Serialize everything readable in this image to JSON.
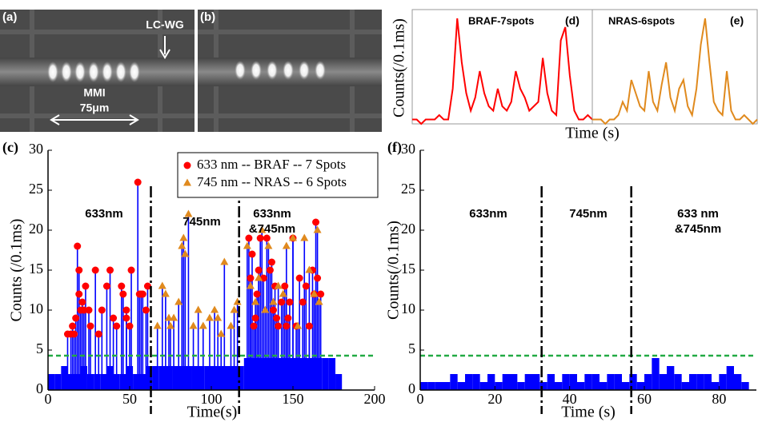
{
  "images": {
    "a": {
      "label": "(a)",
      "annotations": [
        "LC-WG",
        "MMI",
        "75μm"
      ]
    },
    "b": {
      "label": "(b)"
    }
  },
  "chart_data": [
    {
      "type": "line",
      "panel_label": "(d)",
      "title": "BRAF-7spots",
      "xlabel": "Time (s)",
      "ylabel": "Counts(/0.1ms)",
      "color": "#ff0000",
      "xlim": [
        0,
        40
      ],
      "ylim": [
        0,
        26
      ],
      "x": [
        0,
        1,
        2,
        3,
        4,
        5,
        6,
        7,
        8,
        9,
        10,
        11,
        12,
        13,
        14,
        15,
        16,
        17,
        18,
        19,
        20,
        21,
        22,
        23,
        24,
        25,
        26,
        27,
        28,
        29,
        30,
        31,
        32,
        33,
        34,
        35,
        36,
        37,
        38,
        39,
        40
      ],
      "values": [
        1,
        1,
        0,
        1,
        1,
        1,
        2,
        1,
        1,
        8,
        24,
        14,
        7,
        3,
        6,
        12,
        7,
        4,
        3,
        8,
        4,
        3,
        5,
        12,
        8,
        6,
        3,
        4,
        5,
        15,
        7,
        3,
        2,
        19,
        22,
        11,
        3,
        1,
        1,
        2,
        1
      ]
    },
    {
      "type": "line",
      "panel_label": "(e)",
      "title": "NRAS-6spots",
      "color": "#e08a1e",
      "xlim": [
        0,
        38
      ],
      "ylim": [
        0,
        26
      ],
      "x": [
        0,
        1,
        2,
        3,
        4,
        5,
        6,
        7,
        8,
        9,
        10,
        11,
        12,
        13,
        14,
        15,
        16,
        17,
        18,
        19,
        20,
        21,
        22,
        23,
        24,
        25,
        26,
        27,
        28,
        29,
        30,
        31,
        32,
        33,
        34,
        35,
        36,
        37,
        38
      ],
      "values": [
        1,
        1,
        1,
        0,
        1,
        1,
        2,
        5,
        3,
        10,
        7,
        4,
        3,
        12,
        5,
        3,
        9,
        14,
        6,
        3,
        8,
        10,
        4,
        2,
        8,
        18,
        24,
        14,
        5,
        3,
        2,
        12,
        3,
        1,
        1,
        2,
        1,
        0,
        1
      ]
    },
    {
      "type": "stem",
      "panel_label": "(c)",
      "xlabel": "Time(s)",
      "ylabel": "Counts (/0.1ms)",
      "xlim": [
        0,
        200
      ],
      "ylim": [
        0,
        30
      ],
      "xticks": [
        0,
        50,
        100,
        150,
        200
      ],
      "yticks": [
        0,
        5,
        10,
        15,
        20,
        25,
        30
      ],
      "stem_color": "#0000ff",
      "hlines": [
        {
          "value": 4.3,
          "color": "#22aa44"
        }
      ],
      "vlines": [
        {
          "value": 63
        },
        {
          "value": 117
        }
      ],
      "annotations": [
        [
          "633nm"
        ],
        [
          "745nm"
        ],
        [
          "633nm",
          "&745nm"
        ]
      ],
      "series": [
        {
          "style": "bar",
          "color": "#0000ff",
          "x": [
            0,
            4,
            8,
            12,
            16,
            20,
            24,
            28,
            32,
            36,
            40,
            44,
            48,
            52,
            56,
            60,
            64,
            68,
            72,
            76,
            80,
            84,
            88,
            92,
            96,
            100,
            104,
            108,
            112,
            116,
            120,
            124,
            128,
            132,
            136,
            140,
            144,
            148,
            152,
            156,
            160,
            164,
            168,
            172,
            176
          ],
          "values": [
            2,
            2,
            3,
            2,
            2,
            3,
            2,
            2,
            2,
            3,
            2,
            2,
            3,
            2,
            2,
            3,
            3,
            3,
            3,
            3,
            3,
            3,
            3,
            3,
            3,
            3,
            3,
            3,
            3,
            3,
            4,
            4,
            4,
            4,
            4,
            4,
            4,
            4,
            4,
            4,
            4,
            4,
            4,
            4,
            2
          ]
        },
        {
          "name": "633 nm -- BRAF -- 7 Spots",
          "marker": "circle",
          "color": "#ff0000",
          "x": [
            12,
            14,
            15,
            16,
            17,
            18,
            19,
            19,
            20,
            21,
            22,
            23,
            25,
            26,
            29,
            31,
            33,
            36,
            38,
            40,
            42,
            45,
            46,
            48,
            48,
            50,
            51,
            55,
            56,
            57,
            58,
            60,
            61,
            123,
            124,
            125,
            126,
            127,
            128,
            129,
            130,
            132,
            134,
            136,
            137,
            138,
            139,
            140,
            141,
            143,
            145,
            146,
            147,
            148,
            150,
            152,
            154,
            156,
            158,
            160,
            162,
            163,
            164,
            165,
            167
          ],
          "values": [
            7,
            7,
            8,
            7,
            9,
            18,
            15,
            12,
            10,
            11,
            10,
            13,
            10,
            8,
            15,
            7,
            10,
            13,
            15,
            9,
            8,
            13,
            12,
            10,
            9,
            8,
            15,
            26,
            12,
            12,
            12,
            10,
            13,
            19,
            14,
            17,
            8,
            9,
            12,
            15,
            19,
            14,
            19,
            15,
            16,
            10,
            13,
            9,
            8,
            11,
            13,
            8,
            9,
            11,
            19,
            8,
            14,
            11,
            13,
            8,
            15,
            12,
            21,
            14,
            12
          ]
        },
        {
          "name": "745 nm -- NRAS -- 6 Spots",
          "marker": "triangle",
          "color": "#e08a1e",
          "x": [
            67,
            70,
            72,
            74,
            75,
            77,
            80,
            82,
            83,
            84,
            86,
            89,
            92,
            95,
            99,
            102,
            104,
            106,
            108,
            112,
            114,
            116,
            122,
            124,
            127,
            129,
            131,
            133,
            135,
            138,
            141,
            144,
            146,
            150,
            153,
            157,
            160,
            163,
            165,
            166
          ],
          "values": [
            8,
            13,
            12,
            9,
            8,
            9,
            11,
            18,
            19,
            17,
            22,
            8,
            10,
            8,
            9,
            10,
            9,
            7,
            16,
            8,
            10,
            11,
            18,
            13,
            11,
            14,
            20,
            10,
            18,
            11,
            13,
            12,
            18,
            19,
            8,
            19,
            15,
            12,
            20,
            11
          ]
        }
      ]
    },
    {
      "type": "stem",
      "panel_label": "(f)",
      "xlabel": "Time (s)",
      "ylabel": "Counts(/0.1ms)",
      "xlim": [
        0,
        90
      ],
      "ylim": [
        0,
        30
      ],
      "xticks": [
        0,
        20,
        40,
        60,
        80
      ],
      "yticks": [
        0,
        5,
        10,
        15,
        20,
        25,
        30
      ],
      "stem_color": "#0000ff",
      "hlines": [
        {
          "value": 4.3,
          "color": "#22aa44"
        }
      ],
      "vlines": [
        {
          "value": 32.5
        },
        {
          "value": 56.5
        }
      ],
      "annotations": [
        [
          "633nm"
        ],
        [
          "745nm"
        ],
        [
          "633 nm",
          "&745nm"
        ]
      ],
      "series": [
        {
          "style": "bar",
          "color": "#0000ff",
          "x": [
            0,
            2,
            4,
            6,
            8,
            10,
            12,
            14,
            16,
            18,
            20,
            22,
            24,
            26,
            28,
            30,
            32,
            34,
            36,
            38,
            40,
            42,
            44,
            46,
            48,
            50,
            52,
            54,
            56,
            58,
            60,
            62,
            64,
            66,
            68,
            70,
            72,
            74,
            76,
            78,
            80,
            82,
            84,
            86
          ],
          "values": [
            1,
            1,
            1,
            1,
            2,
            1,
            2,
            2,
            1,
            2,
            1,
            2,
            2,
            1,
            2,
            2,
            1,
            2,
            1,
            2,
            2,
            1,
            2,
            2,
            1,
            2,
            2,
            1,
            2,
            1,
            2,
            4,
            2,
            3,
            2,
            1,
            2,
            2,
            2,
            1,
            2,
            3,
            2,
            1
          ]
        }
      ]
    }
  ]
}
